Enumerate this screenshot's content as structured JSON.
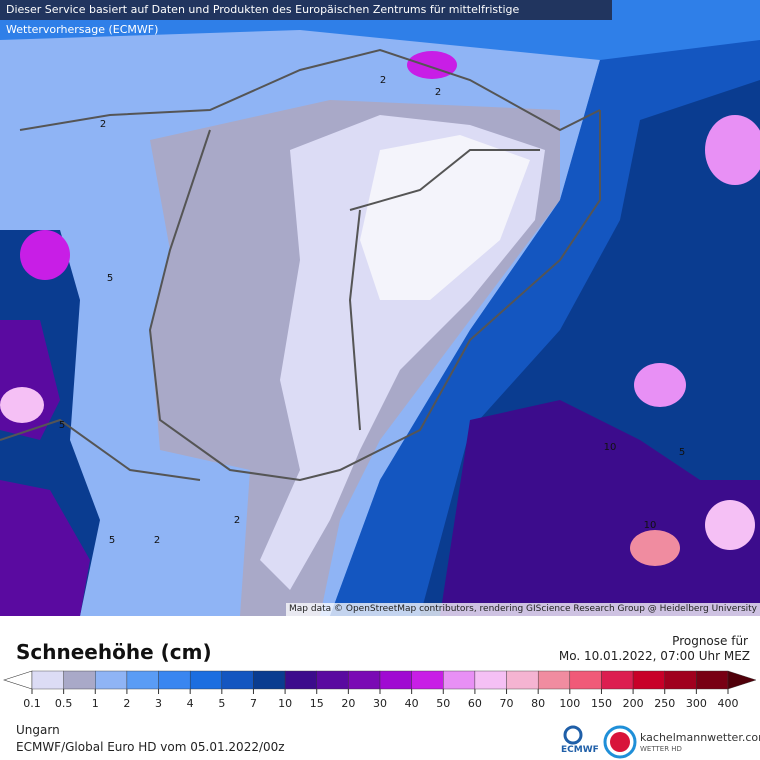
{
  "header": {
    "service_note": "Dieser Service basiert auf Daten und Produkten des Europäischen Zentrums für mittelfristige Wettervorhersage (ECMWF)"
  },
  "map": {
    "attribution": "Map data © OpenStreetMap contributors, rendering GIScience Research Group @ Heidelberg University",
    "contour_labels": [
      "2",
      "2",
      "2",
      "5",
      "5",
      "5",
      "2",
      "10",
      "5",
      "10",
      "2"
    ]
  },
  "legend": {
    "title": "Schneehöhe (cm)",
    "forecast_label": "Prognose für",
    "forecast_time": "Mo. 10.01.2022, 07:00 Uhr MEZ",
    "levels": [
      {
        "value": 0.1,
        "color": "#dcdcf5"
      },
      {
        "value": 0.5,
        "color": "#a9a9c8"
      },
      {
        "value": 1,
        "color": "#8fb4f5"
      },
      {
        "value": 2,
        "color": "#5a9cf5"
      },
      {
        "value": 3,
        "color": "#3a86f0"
      },
      {
        "value": 4,
        "color": "#1c6ee0"
      },
      {
        "value": 5,
        "color": "#1456c0"
      },
      {
        "value": 7,
        "color": "#0a3c90"
      },
      {
        "value": 10,
        "color": "#3c0c8c"
      },
      {
        "value": 15,
        "color": "#5a0aa0"
      },
      {
        "value": 20,
        "color": "#7a0ab4"
      },
      {
        "value": 30,
        "color": "#a00ad2"
      },
      {
        "value": 40,
        "color": "#c81ee6"
      },
      {
        "value": 50,
        "color": "#e890f5"
      },
      {
        "value": 60,
        "color": "#f5c0f5"
      },
      {
        "value": 70,
        "color": "#f5b4d2"
      },
      {
        "value": 80,
        "color": "#f08ca0"
      },
      {
        "value": 100,
        "color": "#f05a78"
      },
      {
        "value": 150,
        "color": "#dc1e50"
      },
      {
        "value": 200,
        "color": "#c80028"
      },
      {
        "value": 250,
        "color": "#a0001e"
      },
      {
        "value": 300,
        "color": "#780014"
      },
      {
        "value": 400,
        "color": "#50000a"
      }
    ]
  },
  "footer": {
    "region": "Ungarn",
    "model": "ECMWF/Global Euro HD vom  05.01.2022/00z",
    "ecmwf_logo": "ECMWF",
    "brand": "kachelmannwetter.com",
    "brand_sub": "WETTER HD"
  }
}
